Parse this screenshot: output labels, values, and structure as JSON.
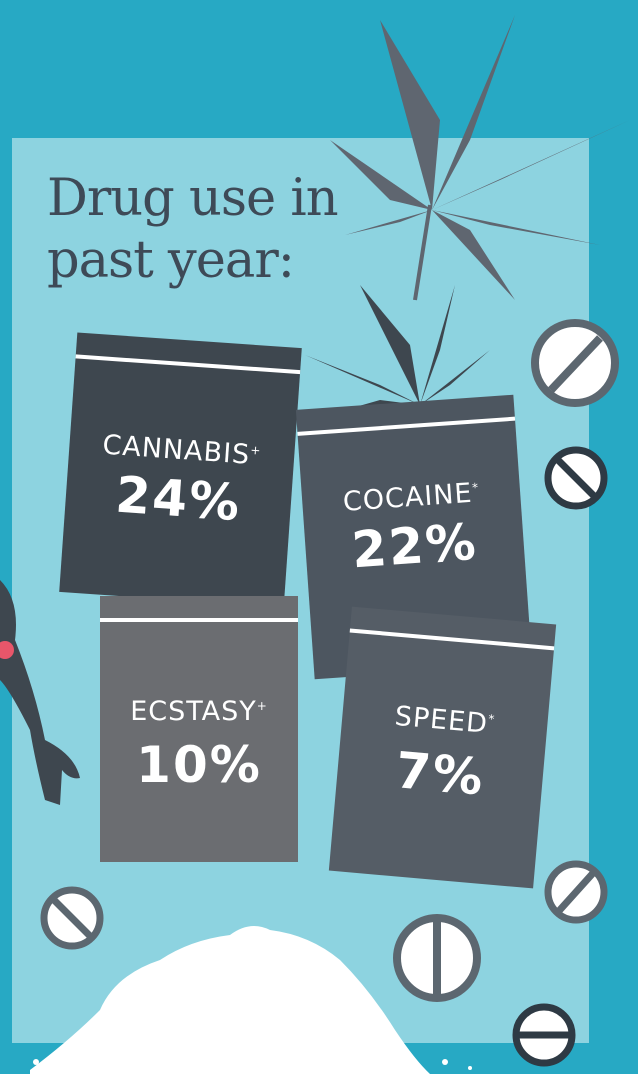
{
  "title": {
    "line1": "Drug use in",
    "line2": "past year:"
  },
  "bags": [
    {
      "label": "CANNABIS",
      "mark": "+",
      "percent": "24%",
      "color": "#3e474f"
    },
    {
      "label": "COCAINE",
      "mark": "*",
      "percent": "22%",
      "color": "#4d5660"
    },
    {
      "label": "ECSTASY",
      "mark": "+",
      "percent": "10%",
      "color": "#6b6d71"
    },
    {
      "label": "SPEED",
      "mark": "*",
      "percent": "7%",
      "color": "#555d66"
    }
  ],
  "colors": {
    "background": "#27a9c4",
    "panel": "#8dd3e0",
    "leaf": "#5f6670",
    "pill_outline": "#5c6770",
    "powder": "#ffffff"
  },
  "icons": [
    "cannabis-leaf-icon",
    "pill-icon",
    "person-arm-icon",
    "powder-pile-icon"
  ]
}
